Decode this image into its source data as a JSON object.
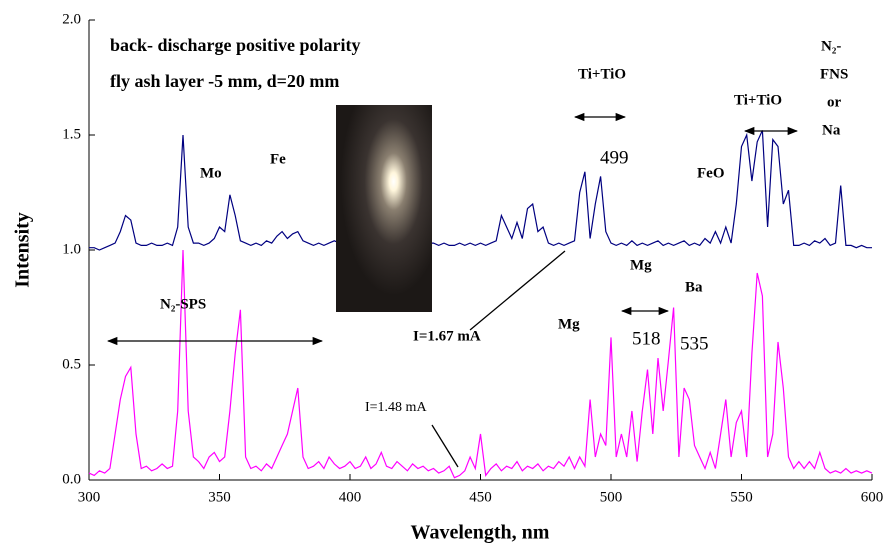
{
  "chart_data": {
    "type": "line",
    "x_label": "Wavelength, nm",
    "y_label": "Intensity",
    "x": [
      300,
      302,
      304,
      306,
      308,
      310,
      312,
      314,
      316,
      318,
      320,
      322,
      324,
      326,
      328,
      330,
      332,
      334,
      336,
      338,
      340,
      342,
      344,
      346,
      348,
      350,
      352,
      354,
      356,
      358,
      360,
      362,
      364,
      366,
      368,
      370,
      372,
      374,
      376,
      378,
      380,
      382,
      384,
      386,
      388,
      390,
      392,
      394,
      396,
      398,
      400,
      402,
      404,
      406,
      408,
      410,
      412,
      414,
      416,
      418,
      420,
      422,
      424,
      426,
      428,
      430,
      432,
      434,
      436,
      438,
      440,
      442,
      444,
      446,
      448,
      450,
      452,
      454,
      456,
      458,
      460,
      462,
      464,
      466,
      468,
      470,
      472,
      474,
      476,
      478,
      480,
      482,
      484,
      486,
      488,
      490,
      492,
      494,
      496,
      498,
      500,
      502,
      504,
      506,
      508,
      510,
      512,
      514,
      516,
      518,
      520,
      522,
      524,
      526,
      528,
      530,
      532,
      534,
      536,
      538,
      540,
      542,
      544,
      546,
      548,
      550,
      552,
      554,
      556,
      558,
      560,
      562,
      564,
      566,
      568,
      570,
      572,
      574,
      576,
      578,
      580,
      582,
      584,
      586,
      588,
      590,
      592,
      594,
      596,
      598,
      600
    ],
    "series": [
      {
        "color": "#000080",
        "values": [
          1.01,
          1.01,
          1.0,
          1.01,
          1.02,
          1.03,
          1.08,
          1.15,
          1.13,
          1.03,
          1.02,
          1.02,
          1.03,
          1.02,
          1.02,
          1.03,
          1.02,
          1.1,
          1.5,
          1.1,
          1.03,
          1.03,
          1.02,
          1.03,
          1.05,
          1.1,
          1.08,
          1.24,
          1.15,
          1.04,
          1.03,
          1.02,
          1.03,
          1.02,
          1.04,
          1.03,
          1.06,
          1.08,
          1.05,
          1.07,
          1.08,
          1.04,
          1.03,
          1.02,
          1.03,
          1.02,
          1.03,
          1.04,
          1.03,
          1.04,
          1.02,
          1.03,
          1.02,
          1.03,
          1.02,
          1.03,
          1.02,
          1.03,
          1.02,
          1.03,
          1.02,
          1.03,
          1.02,
          1.03,
          1.02,
          1.03,
          1.03,
          1.02,
          1.03,
          1.02,
          1.02,
          1.03,
          1.02,
          1.03,
          1.02,
          1.03,
          1.02,
          1.03,
          1.04,
          1.15,
          1.1,
          1.05,
          1.12,
          1.05,
          1.18,
          1.2,
          1.08,
          1.1,
          1.03,
          1.02,
          1.03,
          1.02,
          1.03,
          1.04,
          1.25,
          1.34,
          1.05,
          1.2,
          1.32,
          1.08,
          1.03,
          1.02,
          1.03,
          1.02,
          1.04,
          1.02,
          1.03,
          1.02,
          1.03,
          1.04,
          1.02,
          1.03,
          1.02,
          1.03,
          1.04,
          1.02,
          1.03,
          1.02,
          1.05,
          1.03,
          1.08,
          1.03,
          1.1,
          1.03,
          1.2,
          1.45,
          1.5,
          1.3,
          1.47,
          1.52,
          1.1,
          1.48,
          1.45,
          1.2,
          1.26,
          1.02,
          1.02,
          1.03,
          1.02,
          1.04,
          1.03,
          1.05,
          1.02,
          1.03,
          1.28,
          1.02,
          1.02,
          1.01,
          1.02,
          1.01,
          1.01
        ]
      },
      {
        "color": "#ff00ff",
        "values": [
          0.03,
          0.02,
          0.04,
          0.03,
          0.05,
          0.2,
          0.35,
          0.45,
          0.49,
          0.2,
          0.05,
          0.06,
          0.04,
          0.05,
          0.07,
          0.05,
          0.06,
          0.3,
          1.0,
          0.3,
          0.1,
          0.08,
          0.05,
          0.1,
          0.12,
          0.08,
          0.1,
          0.3,
          0.55,
          0.74,
          0.1,
          0.05,
          0.06,
          0.04,
          0.07,
          0.05,
          0.1,
          0.15,
          0.2,
          0.3,
          0.4,
          0.1,
          0.05,
          0.06,
          0.08,
          0.05,
          0.1,
          0.07,
          0.05,
          0.06,
          0.08,
          0.05,
          0.06,
          0.1,
          0.05,
          0.07,
          0.12,
          0.06,
          0.05,
          0.08,
          0.06,
          0.04,
          0.07,
          0.05,
          0.06,
          0.04,
          0.05,
          0.03,
          0.04,
          0.06,
          0.01,
          0.02,
          0.04,
          0.1,
          0.05,
          0.2,
          0.02,
          0.05,
          0.07,
          0.04,
          0.06,
          0.05,
          0.08,
          0.04,
          0.06,
          0.05,
          0.07,
          0.04,
          0.06,
          0.05,
          0.08,
          0.06,
          0.1,
          0.05,
          0.1,
          0.06,
          0.35,
          0.1,
          0.2,
          0.15,
          0.62,
          0.1,
          0.2,
          0.1,
          0.3,
          0.08,
          0.3,
          0.48,
          0.2,
          0.53,
          0.3,
          0.52,
          0.75,
          0.1,
          0.4,
          0.35,
          0.15,
          0.1,
          0.05,
          0.12,
          0.05,
          0.2,
          0.35,
          0.1,
          0.25,
          0.3,
          0.1,
          0.55,
          0.9,
          0.8,
          0.1,
          0.2,
          0.6,
          0.4,
          0.1,
          0.05,
          0.08,
          0.05,
          0.08,
          0.05,
          0.12,
          0.05,
          0.03,
          0.04,
          0.03,
          0.05,
          0.03,
          0.04,
          0.03,
          0.04,
          0.03
        ]
      }
    ],
    "xlim": [
      300,
      600
    ],
    "ylim": [
      0,
      2
    ],
    "xticks": [
      300,
      350,
      400,
      450,
      500,
      550,
      600
    ],
    "yticks": [
      {
        "value": 0,
        "label": "0.0"
      },
      0.5,
      {
        "value": 1,
        "label": "1.0"
      },
      1.5,
      {
        "value": 2,
        "label": "2.0"
      }
    ],
    "annotations": [
      "back- discharge positive polarity",
      "fly ash layer -5 mm, d=20 mm",
      "Ti+TiO",
      "Ti+TiO",
      "N₂-",
      "FNS",
      "or",
      "Na",
      "Mo",
      "Fe",
      "499",
      "FeO",
      "Mg",
      "Ba",
      "Mg",
      "518",
      "535",
      "N₂-SPS",
      "I=1.67 mA",
      "I=1.48 mA"
    ]
  }
}
